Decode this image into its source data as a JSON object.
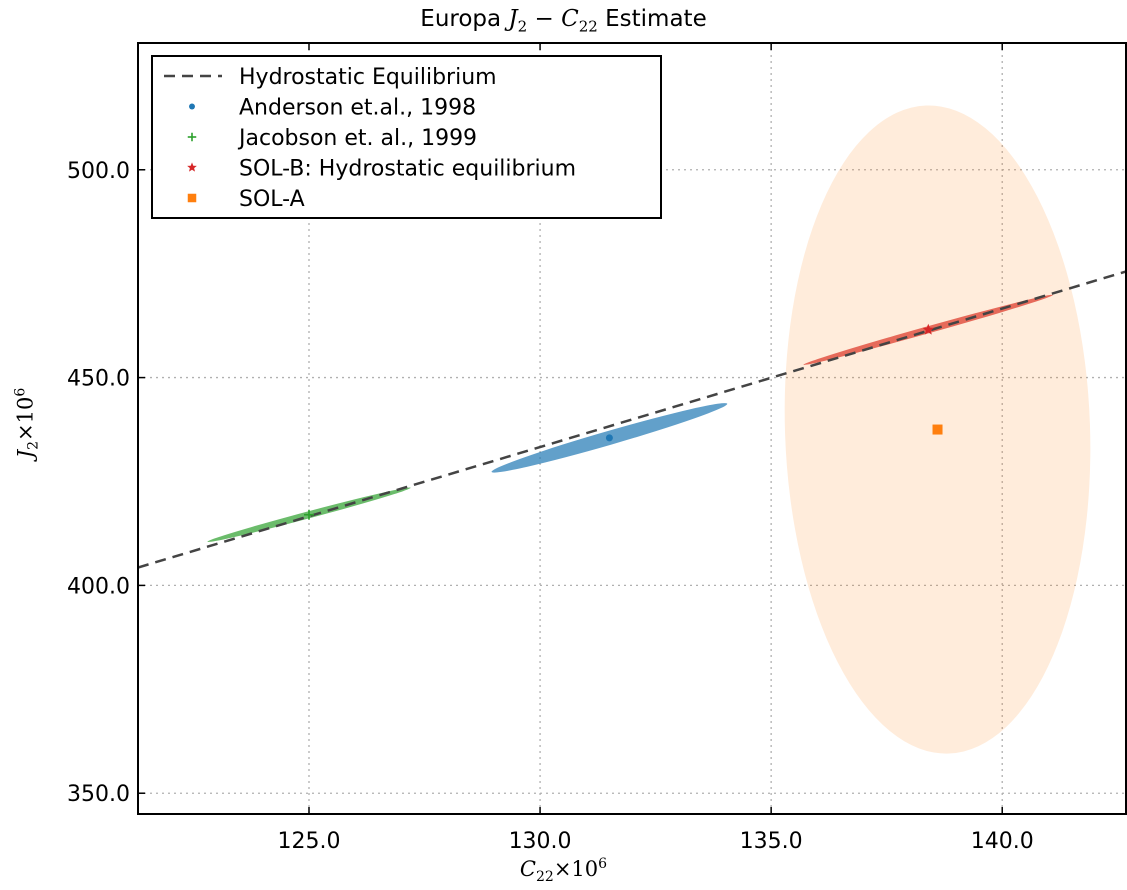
{
  "title": {
    "prefix": "Europa ",
    "math_j": "J",
    "math_j_sub": "2",
    "math_minus": " − ",
    "math_c": "C",
    "math_c_sub": "22",
    "suffix": " Estimate"
  },
  "axis_labels": {
    "x": {
      "sym": "C",
      "sub": "22",
      "times": "×10",
      "sup": "6"
    },
    "y": {
      "sym": "J",
      "sub": "2",
      "times": "×10",
      "sup": "6"
    }
  },
  "chart_data": {
    "type": "scatter",
    "title": "Europa J2 − C22 Estimate",
    "xlabel": "C22×10^6",
    "ylabel": "J2×10^6",
    "xlim": [
      121.3,
      142.7
    ],
    "ylim": [
      345.0,
      530.5
    ],
    "xticks": [
      125.0,
      130.0,
      135.0,
      140.0
    ],
    "xtick_labels": [
      "125.0",
      "130.0",
      "135.0",
      "140.0"
    ],
    "yticks": [
      350.0,
      400.0,
      450.0,
      500.0
    ],
    "ytick_labels": [
      "350.0",
      "400.0",
      "450.0",
      "500.0"
    ],
    "grid": true,
    "legend_position": "top-left",
    "hydrostatic_line": {
      "name": "Hydrostatic Equilibrium",
      "x": [
        121.3,
        142.7
      ],
      "y": [
        404.3,
        475.6
      ],
      "color": "#444444",
      "style": "dashed"
    },
    "series": [
      {
        "name": "Anderson et.al., 1998",
        "marker": "circle",
        "color": "#1f77b4",
        "x": [
          131.5
        ],
        "y": [
          435.5
        ],
        "ellipse": {
          "cx": 131.5,
          "cy": 435.5,
          "x_extent": [
            129.0,
            134.1
          ],
          "y_extent": [
            427.5,
            443.9
          ],
          "opacity": 0.7
        }
      },
      {
        "name": "Jacobson et. al., 1999",
        "marker": "plus",
        "color": "#2ca02c",
        "x": [
          125.0
        ],
        "y": [
          417.0
        ],
        "ellipse": {
          "cx": 125.0,
          "cy": 417.0,
          "x_extent": [
            122.8,
            127.2
          ],
          "y_extent": [
            410.5,
            423.5
          ],
          "opacity": 0.7
        }
      },
      {
        "name": "SOL-B: Hydrostatic equilibrium",
        "marker": "star",
        "color": "#d62728",
        "x": [
          138.4
        ],
        "y": [
          461.5
        ],
        "ellipse": {
          "cx": 138.4,
          "cy": 461.5,
          "x_extent": [
            135.7,
            141.1
          ],
          "y_extent": [
            453.0,
            469.8
          ],
          "opacity": 0.7
        }
      },
      {
        "name": "SOL-A",
        "marker": "square",
        "color": "#ff7f0e",
        "x": [
          138.6
        ],
        "y": [
          437.5
        ],
        "ellipse": {
          "cx": 138.6,
          "cy": 437.5,
          "x_extent": [
            135.3,
            141.9
          ],
          "y_extent": [
            359.5,
            515.5
          ],
          "opacity": 0.15
        }
      }
    ]
  },
  "colors": {
    "background": "#ffffff",
    "axes": "#000000",
    "grid": "#b0b0b0"
  }
}
